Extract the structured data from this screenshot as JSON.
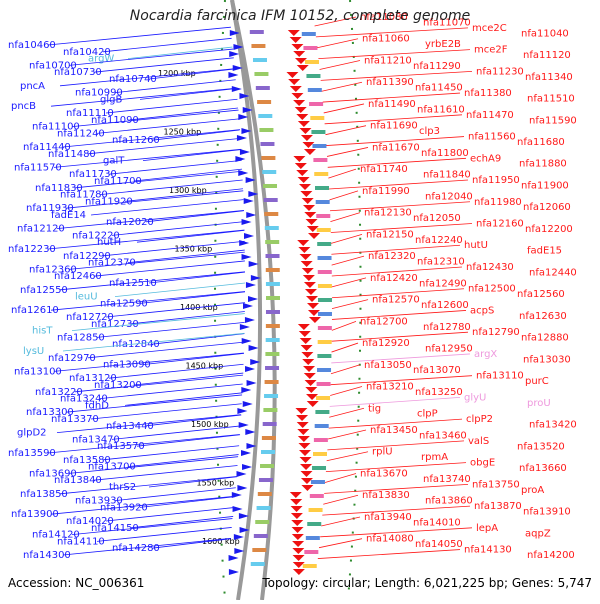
{
  "title": "Nocardia farcinica IFM 10152, complete genome",
  "accession": "Accession: NC_006361",
  "summary": "Topology: circular; Length: 6,021,225 bp; Genes: 5,747",
  "colors": {
    "forward_line": "#1a1aff",
    "reverse_line": "#ff1a1a",
    "rna_forward": "#55bbdd",
    "rna_reverse": "#ee99dd",
    "scale_dot": "#2e8b2e",
    "backbone": "#999999"
  },
  "scale_labels": [
    "1200 kbp",
    "1250 kbp",
    "1300 kbp",
    "1350 kbp",
    "1400 kbp",
    "1450 kbp",
    "1500 kbp",
    "1550 kbp",
    "1600 kbp"
  ],
  "left_genes": [
    "nfa10460",
    "nfa10420",
    "argW",
    "nfa10700",
    "nfa10730",
    "nfa10740",
    "pncA",
    "nfa10990",
    "glgB",
    "pncB",
    "nfa11110",
    "nfa11090",
    "nfa11100",
    "nfa11240",
    "nfa11260",
    "nfa11440",
    "nfa11480",
    "galT",
    "nfa11570",
    "nfa11730",
    "nfa11700",
    "nfa11830",
    "nfa11780",
    "nfa11920",
    "nfa11930",
    "fadE14",
    "nfa12020",
    "nfa12120",
    "nfa12220",
    "hutH",
    "nfa12230",
    "nfa12290",
    "nfa12370",
    "nfa12360",
    "nfa12460",
    "nfa12510",
    "nfa12550",
    "leuU",
    "nfa12590",
    "nfa12610",
    "nfa12720",
    "nfa12730",
    "hisT",
    "nfa12850",
    "nfa12840",
    "lysU",
    "nfa12970",
    "nfa13090",
    "nfa13100",
    "nfa13120",
    "nfa13200",
    "nfa13220",
    "nfa13240",
    "fdhD",
    "nfa13300",
    "nfa13370",
    "nfa13440",
    "glpD2",
    "nfa13470",
    "nfa13570",
    "nfa13590",
    "nfa13580",
    "nfa13700",
    "nfa13690",
    "nfa13840",
    "thrS2",
    "nfa13850",
    "nfa13930",
    "nfa13920",
    "nfa13900",
    "nfa14020",
    "nfa14150",
    "nfa14120",
    "nfa14110",
    "nfa14280",
    "nfa14300"
  ],
  "right_genes": [
    "nfa11080",
    "nfa11070",
    "mce2C",
    "nfa11040",
    "nfa11060",
    "yrbE2B",
    "mce2F",
    "nfa11120",
    "nfa11210",
    "nfa11290",
    "nfa11230",
    "nfa11340",
    "nfa11390",
    "nfa11450",
    "nfa11380",
    "nfa11510",
    "nfa11490",
    "nfa11610",
    "nfa11470",
    "nfa11590",
    "nfa11690",
    "clp3",
    "nfa11560",
    "nfa11680",
    "nfa11670",
    "nfa11800",
    "echA9",
    "nfa11880",
    "nfa11740",
    "nfa11840",
    "nfa11950",
    "nfa11900",
    "nfa11990",
    "nfa12040",
    "nfa11980",
    "nfa12060",
    "nfa12130",
    "nfa12050",
    "nfa12160",
    "nfa12200",
    "nfa12150",
    "nfa12240",
    "hutU",
    "fadE15",
    "nfa12320",
    "nfa12310",
    "nfa12430",
    "nfa12440",
    "nfa12420",
    "nfa12490",
    "nfa12500",
    "nfa12560",
    "nfa12570",
    "nfa12600",
    "acpS",
    "nfa12630",
    "nfa12700",
    "nfa12780",
    "nfa12790",
    "nfa12880",
    "nfa12920",
    "nfa12950",
    "argX",
    "nfa13030",
    "nfa13050",
    "nfa13070",
    "nfa13110",
    "purC",
    "nfa13210",
    "nfa13250",
    "glyU",
    "proU",
    "tig",
    "clpP",
    "clpP2",
    "nfa13420",
    "nfa13450",
    "nfa13460",
    "valS",
    "nfa13520",
    "rplU",
    "rpmA",
    "obgE",
    "nfa13660",
    "nfa13670",
    "nfa13740",
    "nfa13750",
    "proA",
    "nfa13830",
    "nfa13860",
    "nfa13870",
    "nfa13910",
    "nfa13940",
    "nfa14010",
    "lepA",
    "aqpZ",
    "nfa14080",
    "nfa14050",
    "nfa14130",
    "nfa14200"
  ]
}
